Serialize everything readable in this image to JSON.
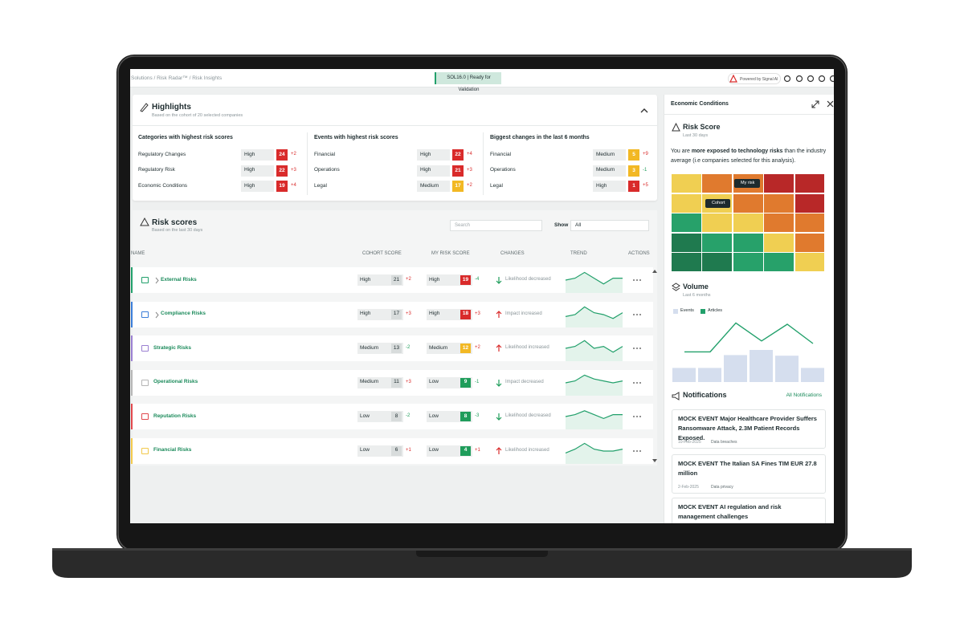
{
  "breadcrumb": "Solutions / Risk Radar™ / Risk Insights",
  "version_badge": "SOL16.0 | Ready for Validation",
  "powered_by": "Powered by Signal AI",
  "level_colors": {
    "High": "#d92b2b",
    "Medium": "#f2b824",
    "Low": "#1f9d5b"
  },
  "highlights": {
    "title": "Highlights",
    "subtitle": "Based on the cohort of 20 selected companies",
    "columns": [
      {
        "title": "Categories with highest risk scores",
        "rows": [
          {
            "name": "Regulatory Changes",
            "level": "High",
            "score": 24,
            "change": "+2"
          },
          {
            "name": "Regulatory Risk",
            "level": "High",
            "score": 22,
            "change": "+3"
          },
          {
            "name": "Economic Conditions",
            "level": "High",
            "score": 19,
            "change": "+4"
          }
        ]
      },
      {
        "title": "Events with highest risk scores",
        "rows": [
          {
            "name": "Financial",
            "level": "High",
            "score": 22,
            "change": "+4"
          },
          {
            "name": "Operations",
            "level": "High",
            "score": 21,
            "change": "+3"
          },
          {
            "name": "Legal",
            "level": "Medium",
            "score": 17,
            "change": "+2"
          }
        ]
      },
      {
        "title": "Biggest changes in the last 6 months",
        "rows": [
          {
            "name": "Financial",
            "level": "Medium",
            "score": 5,
            "change": "+9"
          },
          {
            "name": "Operations",
            "level": "Medium",
            "score": 3,
            "change": "-1"
          },
          {
            "name": "Legal",
            "level": "High",
            "score": 1,
            "change": "+5"
          }
        ]
      }
    ]
  },
  "risk_scores": {
    "title": "Risk scores",
    "subtitle": "Based on the last 30 days",
    "search_placeholder": "Search",
    "show_label": "Show",
    "show_value": "All",
    "headers": [
      "NAME",
      "COHORT SCORE",
      "MY RISK SCORE",
      "CHANGES",
      "TREND",
      "ACTIONS"
    ],
    "rows": [
      {
        "name": "External Risks",
        "color": "#22a06b",
        "cohort_level": "High",
        "cohort_score": 21,
        "cohort_change": "+2",
        "my_level": "High",
        "my_score": 19,
        "my_change": "-4",
        "change_text": "Likelihood decreased",
        "trend": [
          5,
          6,
          9,
          6,
          3,
          6,
          6
        ]
      },
      {
        "name": "Compliance Risks",
        "color": "#3b7dd8",
        "cohort_level": "High",
        "cohort_score": 17,
        "cohort_change": "+3",
        "my_level": "High",
        "my_score": 18,
        "my_change": "+3",
        "change_text": "Impact increased",
        "trend": [
          4,
          5,
          9,
          6,
          5,
          3,
          6
        ]
      },
      {
        "name": "Strategic Risks",
        "color": "#9a7fd1",
        "cohort_level": "Medium",
        "cohort_score": 13,
        "cohort_change": "-2",
        "my_level": "Medium",
        "my_score": 12,
        "my_change": "+2",
        "change_text": "Likelihood increased",
        "trend": [
          5,
          6,
          9,
          5,
          6,
          3,
          6
        ]
      },
      {
        "name": "Operational Risks",
        "color": "#b5b5b5",
        "cohort_level": "Medium",
        "cohort_score": 11,
        "cohort_change": "+3",
        "my_level": "Low",
        "my_score": 9,
        "my_change": "-1",
        "change_text": "Impact decreased",
        "trend": [
          5,
          6,
          9,
          7,
          6,
          5,
          6
        ]
      },
      {
        "name": "Reputation Risks",
        "color": "#e0474c",
        "cohort_level": "Low",
        "cohort_score": 8,
        "cohort_change": "-2",
        "my_level": "Low",
        "my_score": 8,
        "my_change": "-3",
        "change_text": "Likelihood decreased",
        "trend": [
          5,
          6,
          8,
          6,
          4,
          6,
          6
        ]
      },
      {
        "name": "Financial Risks",
        "color": "#f2c94c",
        "cohort_level": "Low",
        "cohort_score": 6,
        "cohort_change": "+1",
        "my_level": "Low",
        "my_score": 4,
        "my_change": "+1",
        "change_text": "Likelihood increased",
        "trend": [
          4,
          6,
          9,
          6,
          5,
          5,
          6
        ]
      }
    ]
  },
  "panel": {
    "title": "Economic Conditions",
    "risk_score": {
      "title": "Risk Score",
      "subtitle": "Last 30 days",
      "text_before": "You are ",
      "text_bold": "more exposed to technology risks",
      "text_after": " than the industry average (i.e companies selected for this analysis).",
      "heatmap": [
        [
          "#f0cf52",
          "#e07a2e",
          "#e07a2e",
          "#b82828",
          "#b82828"
        ],
        [
          "#f0cf52",
          "#f0cf52",
          "#e07a2e",
          "#e07a2e",
          "#b82828"
        ],
        [
          "#27a16a",
          "#f0cf52",
          "#f0cf52",
          "#e07a2e",
          "#e07a2e"
        ],
        [
          "#1f7a4f",
          "#27a16a",
          "#27a16a",
          "#f0cf52",
          "#e07a2e"
        ],
        [
          "#1f7a4f",
          "#1f7a4f",
          "#27a16a",
          "#27a16a",
          "#f0cf52"
        ]
      ],
      "my_risk_label": "My risk",
      "cohort_label": "Cohort"
    },
    "volume": {
      "title": "Volume",
      "subtitle": "Last 6 months",
      "series": [
        {
          "name": "Events",
          "color": "#d5deee",
          "values": [
            2.2,
            2.2,
            4.2,
            5,
            4.1,
            2.2
          ]
        },
        {
          "name": "Articles",
          "color": "#22a06b",
          "values": [
            4.7,
            4.7,
            9.2,
            6.4,
            9,
            6
          ]
        }
      ]
    },
    "notifications": {
      "title": "Notifications",
      "link": "All Notifications",
      "items": [
        {
          "title": "MOCK EVENT Major Healthcare Provider Suffers Ransomware Attack, 2.3M Patient Records Exposed.",
          "date": "10-Feb-2025",
          "tag": "Data breaches"
        },
        {
          "title": "MOCK EVENT The Italian SA Fines TIM EUR 27.8 million",
          "date": "2-Feb-2025",
          "tag": "Data privacy"
        },
        {
          "title": "MOCK EVENT AI regulation and risk management challenges"
        }
      ]
    }
  }
}
